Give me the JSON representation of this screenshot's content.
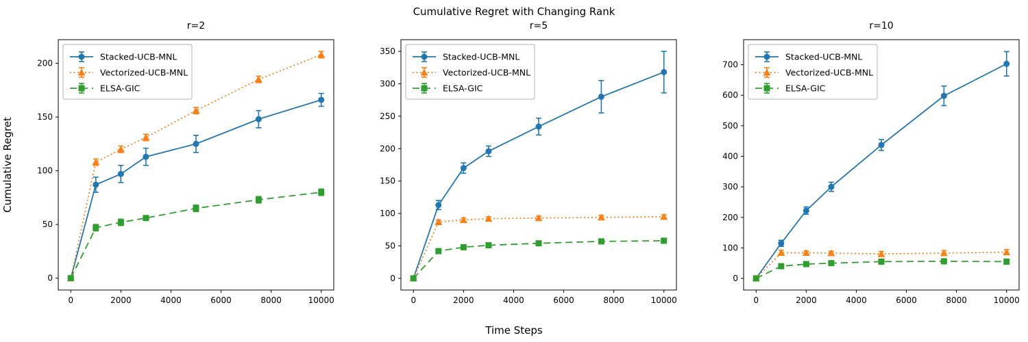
{
  "figure": {
    "suptitle": "Cumulative Regret with Changing Rank",
    "xlabel": "Time Steps",
    "ylabel": "Cumulative Regret"
  },
  "colors": {
    "stacked_ucb_mnl": "#1f77b4",
    "vectorized_ucb_mnl": "#ff7f0e",
    "elsa_gic": "#2ca02c",
    "axis": "#000000",
    "legend_border": "#b0b0b0"
  },
  "chart_data": [
    {
      "type": "line",
      "title": "r=2",
      "xlabel": "",
      "ylabel": "Cumulative Regret",
      "x": [
        0,
        1000,
        2000,
        3000,
        5000,
        7500,
        10000
      ],
      "xticks": [
        0,
        2000,
        4000,
        6000,
        8000,
        10000
      ],
      "yticks": [
        0,
        50,
        100,
        150,
        200
      ],
      "xlim": [
        -500,
        10500
      ],
      "ylim": [
        -11,
        222
      ],
      "grid": false,
      "legend_position": "upper-left",
      "series": [
        {
          "name": "Stacked-UCB-MNL",
          "color": "#1f77b4",
          "linestyle": "solid",
          "marker": "circle",
          "values": [
            0,
            87,
            97,
            113,
            125,
            148,
            166
          ],
          "errors": [
            1,
            7,
            8,
            8,
            8,
            8,
            6
          ]
        },
        {
          "name": "Vectorized-UCB-MNL",
          "color": "#ff7f0e",
          "linestyle": "dotted",
          "marker": "triangle",
          "values": [
            0,
            108,
            120,
            131,
            156,
            185,
            208
          ],
          "errors": [
            1,
            3,
            3,
            3,
            3,
            3,
            3
          ]
        },
        {
          "name": "ELSA-GIC",
          "color": "#2ca02c",
          "linestyle": "dashed",
          "marker": "square",
          "values": [
            0,
            47,
            52,
            56,
            65,
            73,
            80
          ],
          "errors": [
            1,
            3,
            3,
            2,
            3,
            3,
            3
          ]
        }
      ]
    },
    {
      "type": "line",
      "title": "r=5",
      "xlabel": "",
      "ylabel": "",
      "x": [
        0,
        1000,
        2000,
        3000,
        5000,
        7500,
        10000
      ],
      "xticks": [
        0,
        2000,
        4000,
        6000,
        8000,
        10000
      ],
      "yticks": [
        0,
        50,
        100,
        150,
        200,
        250,
        300,
        350
      ],
      "xlim": [
        -500,
        10500
      ],
      "ylim": [
        -18,
        368
      ],
      "grid": false,
      "legend_position": "upper-left",
      "series": [
        {
          "name": "Stacked-UCB-MNL",
          "color": "#1f77b4",
          "linestyle": "solid",
          "marker": "circle",
          "values": [
            0,
            113,
            170,
            196,
            234,
            280,
            318
          ],
          "errors": [
            1,
            7,
            8,
            8,
            13,
            25,
            32
          ]
        },
        {
          "name": "Vectorized-UCB-MNL",
          "color": "#ff7f0e",
          "linestyle": "dotted",
          "marker": "triangle",
          "values": [
            0,
            87,
            90,
            92,
            93,
            94,
            95
          ],
          "errors": [
            1,
            3,
            3,
            3,
            3,
            3,
            3
          ]
        },
        {
          "name": "ELSA-GIC",
          "color": "#2ca02c",
          "linestyle": "dashed",
          "marker": "square",
          "values": [
            0,
            42,
            48,
            51,
            54,
            57,
            58
          ],
          "errors": [
            1,
            3,
            3,
            3,
            3,
            3,
            3
          ]
        }
      ]
    },
    {
      "type": "line",
      "title": "r=10",
      "xlabel": "",
      "ylabel": "",
      "x": [
        0,
        1000,
        2000,
        3000,
        5000,
        7500,
        10000
      ],
      "xticks": [
        0,
        2000,
        4000,
        6000,
        8000,
        10000
      ],
      "yticks": [
        0,
        100,
        200,
        300,
        400,
        500,
        600,
        700
      ],
      "xlim": [
        -500,
        10500
      ],
      "ylim": [
        -38,
        782
      ],
      "grid": false,
      "legend_position": "upper-left",
      "series": [
        {
          "name": "Stacked-UCB-MNL",
          "color": "#1f77b4",
          "linestyle": "solid",
          "marker": "circle",
          "values": [
            0,
            115,
            222,
            300,
            437,
            598,
            703
          ],
          "errors": [
            2,
            10,
            12,
            15,
            18,
            32,
            40
          ]
        },
        {
          "name": "Vectorized-UCB-MNL",
          "color": "#ff7f0e",
          "linestyle": "dotted",
          "marker": "triangle",
          "values": [
            0,
            84,
            84,
            83,
            80,
            83,
            86
          ],
          "errors": [
            2,
            8,
            6,
            6,
            8,
            8,
            8
          ]
        },
        {
          "name": "ELSA-GIC",
          "color": "#2ca02c",
          "linestyle": "dashed",
          "marker": "square",
          "values": [
            0,
            40,
            47,
            50,
            55,
            56,
            55
          ],
          "errors": [
            2,
            5,
            4,
            5,
            4,
            4,
            5
          ]
        }
      ]
    }
  ]
}
